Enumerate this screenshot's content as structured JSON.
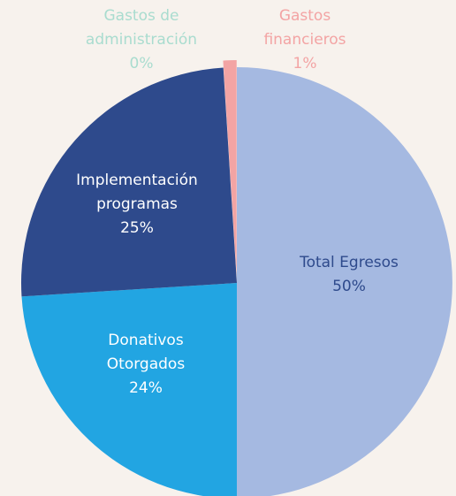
{
  "chart_data": {
    "type": "pie",
    "categories": [
      "Total Egresos",
      "Donativos Otorgados",
      "Implementación programas",
      "Gastos de administración",
      "Gastos financieros"
    ],
    "values": [
      50,
      24,
      25,
      0,
      1
    ],
    "value_labels": [
      "50%",
      "24%",
      "25%",
      "0%",
      "1%"
    ],
    "colors": [
      "#a5b9e1",
      "#22a5e2",
      "#2e4a8c",
      "#a9dccf",
      "#f3a4a4"
    ],
    "label_colors": [
      "#2e4a8c",
      "#ffffff",
      "#ffffff",
      "#a9dccf",
      "#f3a4a4"
    ],
    "exploded": [
      false,
      false,
      false,
      false,
      true
    ]
  }
}
